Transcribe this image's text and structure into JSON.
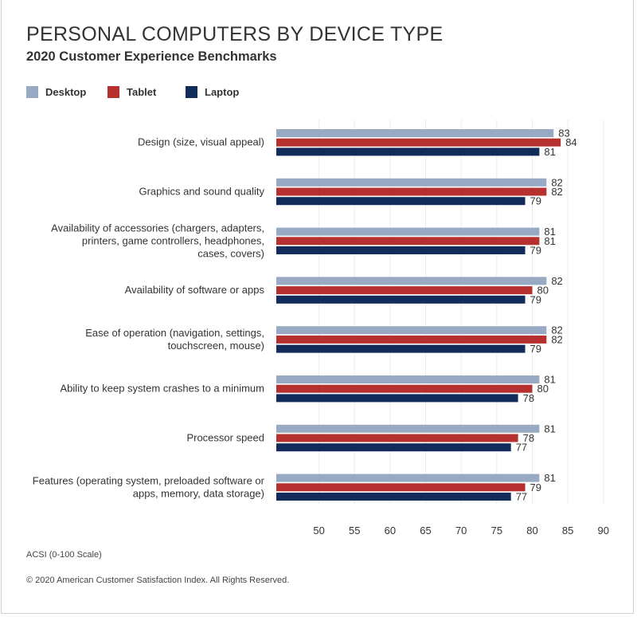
{
  "chart_data": {
    "type": "bar",
    "orientation": "horizontal",
    "title": "PERSONAL COMPUTERS BY DEVICE TYPE",
    "subtitle": "2020 Customer Experience Benchmarks",
    "categories": [
      [
        "Design (size, visual appeal)"
      ],
      [
        "Graphics and sound quality"
      ],
      [
        "Availability of accessories (chargers, adapters,",
        "printers, game controllers, headphones,",
        "cases, covers)"
      ],
      [
        "Availability of software or apps"
      ],
      [
        "Ease of operation (navigation, settings,",
        "touchscreen, mouse)"
      ],
      [
        "Ability to keep system crashes to a minimum"
      ],
      [
        "Processor speed"
      ],
      [
        "Features (operating system, preloaded software or",
        "apps, memory, data storage)"
      ]
    ],
    "series": [
      {
        "name": "Desktop",
        "color": "#97a9c3",
        "values": [
          83,
          82,
          81,
          82,
          82,
          81,
          81,
          81
        ]
      },
      {
        "name": "Tablet",
        "color": "#b5302e",
        "values": [
          84,
          82,
          81,
          80,
          82,
          80,
          78,
          79
        ]
      },
      {
        "name": "Laptop",
        "color": "#112c5a",
        "values": [
          81,
          79,
          79,
          79,
          79,
          78,
          77,
          77
        ]
      }
    ],
    "xticks": [
      50,
      55,
      60,
      65,
      70,
      75,
      80,
      85,
      90
    ],
    "xlim": [
      44,
      92
    ],
    "grid": true,
    "legend_position": "top-left",
    "xlabel": "ACSI (0-100 Scale)"
  },
  "footer": {
    "copyright": "© 2020 American Customer Satisfaction Index. All Rights Reserved."
  }
}
